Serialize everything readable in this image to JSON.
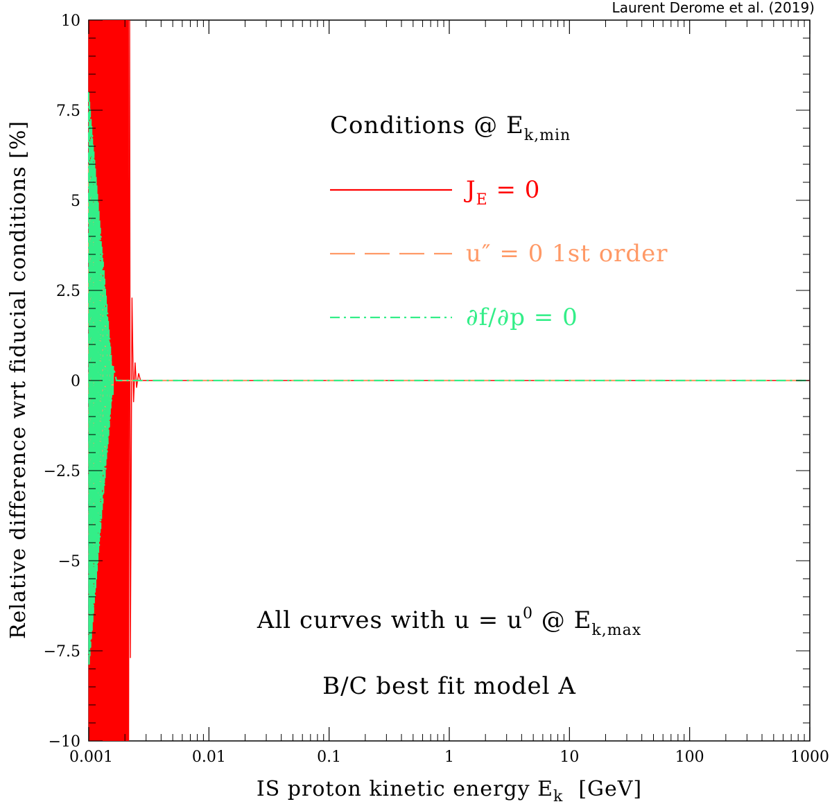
{
  "credit": "Laurent Derome et al. (2019)",
  "chart_data": {
    "type": "line",
    "xlabel_main": "IS proton kinetic energy E",
    "xlabel_sub": "k",
    "xlabel_unit": "[GeV]",
    "ylabel": "Relative difference wrt fiducial conditions [%]",
    "x_scale": "log",
    "xlim": [
      0.001,
      1000
    ],
    "ylim": [
      -10,
      10
    ],
    "x_ticks": [
      0.001,
      0.01,
      0.1,
      1,
      10,
      100,
      1000
    ],
    "x_tick_labels": [
      "0.001",
      "0.01",
      "0.1",
      "1",
      "10",
      "100",
      "1000"
    ],
    "y_ticks": [
      -10,
      -7.5,
      -5,
      -2.5,
      0,
      2.5,
      5,
      7.5,
      10
    ],
    "y_tick_labels": [
      "−10",
      "−7.5",
      "−5",
      "−2.5",
      "0",
      "2.5",
      "5",
      "7.5",
      "10"
    ],
    "legend_title": {
      "main": "Conditions @ E",
      "sub": "k,min"
    },
    "series": [
      {
        "name_main": "J",
        "name_sub": "E",
        "name_rest": " = 0",
        "color": "#ff0000",
        "style": "solid",
        "osc_end": 0.00215,
        "osc_amp": 10,
        "osc_period_log": 0.0033,
        "tail_points": [
          [
            0.00219,
            10
          ],
          [
            0.00222,
            -7.7
          ],
          [
            0.00229,
            2.3
          ],
          [
            0.00236,
            -0.6
          ],
          [
            0.00243,
            0.5
          ],
          [
            0.0025,
            -0.2
          ],
          [
            0.0026,
            0.2
          ],
          [
            0.0027,
            0
          ],
          [
            1000,
            0
          ]
        ]
      },
      {
        "name_main": "u″ = 0  1st order",
        "name_sub": "",
        "name_rest": "",
        "color": "#ff9966",
        "style": "dashed",
        "osc_end": 0.0016,
        "osc_amp": 6,
        "osc_period_log": 0.006,
        "tail_points": [
          [
            0.0017,
            0
          ],
          [
            1000,
            0
          ]
        ]
      },
      {
        "name_main": "∂f/∂p = 0",
        "name_sub": "",
        "name_rest": "",
        "color": "#33ee88",
        "style": "dashdot",
        "osc_end": 0.0016,
        "osc_amp": 8,
        "osc_period_log": 0.006,
        "tail_points": [
          [
            0.0017,
            0
          ],
          [
            1000,
            0
          ]
        ]
      }
    ],
    "annotations": [
      {
        "main": "All curves with u = u",
        "sup": "0",
        "mid": " @ E",
        "sub": "k,max"
      },
      {
        "main": "B/C best fit model A"
      }
    ]
  }
}
